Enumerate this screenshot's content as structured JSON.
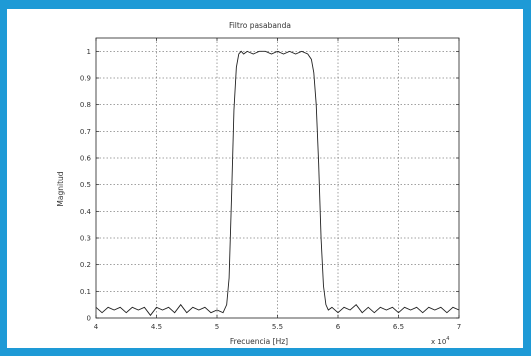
{
  "colors": {
    "background": "#1e9ad6",
    "panel": "#ffffff",
    "line": "#222222",
    "grid": "#444444"
  },
  "chart_data": {
    "type": "line",
    "title": "Filtro pasabanda",
    "xlabel": "Frecuencia [Hz]",
    "ylabel": "Magnitud",
    "x_multiplier_label": "x 10",
    "x_multiplier_exponent": "4",
    "xlim": [
      4,
      7
    ],
    "ylim": [
      0,
      1.05
    ],
    "grid": true,
    "x_ticks": [
      4,
      4.5,
      5,
      5.5,
      6,
      6.5,
      7
    ],
    "x_tick_labels": [
      "4",
      "4.5",
      "5",
      "5.5",
      "6",
      "6.5",
      "7"
    ],
    "y_ticks": [
      0,
      0.1,
      0.2,
      0.3,
      0.4,
      0.5,
      0.6,
      0.7,
      0.8,
      0.9,
      1
    ],
    "y_tick_labels": [
      "0",
      "0.1",
      "0.2",
      "0.3",
      "0.4",
      "0.5",
      "0.6",
      "0.7",
      "0.8",
      "0.9",
      "1"
    ],
    "series": [
      {
        "x": [
          4.0,
          4.05,
          4.1,
          4.15,
          4.2,
          4.25,
          4.3,
          4.35,
          4.4,
          4.45,
          4.5,
          4.55,
          4.6,
          4.65,
          4.7,
          4.75,
          4.8,
          4.85,
          4.9,
          4.95,
          5.0,
          5.05,
          5.08,
          5.1,
          5.12,
          5.14,
          5.16,
          5.18,
          5.2,
          5.22,
          5.25,
          5.3,
          5.35,
          5.4,
          5.45,
          5.5,
          5.55,
          5.6,
          5.65,
          5.7,
          5.75,
          5.78,
          5.8,
          5.82,
          5.84,
          5.86,
          5.88,
          5.9,
          5.92,
          5.95,
          6.0,
          6.05,
          6.1,
          6.15,
          6.2,
          6.25,
          6.3,
          6.35,
          6.4,
          6.45,
          6.5,
          6.55,
          6.6,
          6.65,
          6.7,
          6.75,
          6.8,
          6.85,
          6.9,
          6.95,
          7.0
        ],
        "y": [
          0.04,
          0.02,
          0.04,
          0.03,
          0.04,
          0.02,
          0.04,
          0.03,
          0.04,
          0.01,
          0.04,
          0.03,
          0.04,
          0.02,
          0.05,
          0.02,
          0.04,
          0.03,
          0.04,
          0.02,
          0.03,
          0.02,
          0.05,
          0.15,
          0.45,
          0.78,
          0.94,
          0.99,
          1.0,
          0.99,
          1.0,
          0.99,
          1.0,
          1.0,
          0.99,
          1.0,
          0.99,
          1.0,
          0.99,
          1.0,
          0.99,
          0.97,
          0.92,
          0.8,
          0.58,
          0.3,
          0.12,
          0.05,
          0.03,
          0.04,
          0.02,
          0.04,
          0.03,
          0.05,
          0.02,
          0.04,
          0.02,
          0.04,
          0.03,
          0.04,
          0.02,
          0.04,
          0.03,
          0.04,
          0.02,
          0.04,
          0.03,
          0.04,
          0.02,
          0.04,
          0.03
        ]
      }
    ]
  }
}
